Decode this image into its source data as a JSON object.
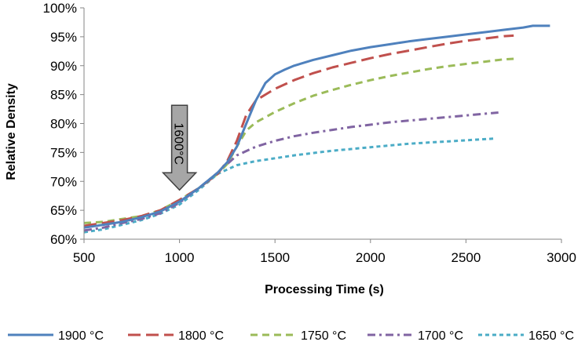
{
  "chart_data": {
    "type": "line",
    "title": "",
    "xlabel": "Processing Time (s)",
    "ylabel": "Relative Density",
    "xlim": [
      500,
      3000
    ],
    "ylim": [
      60,
      100
    ],
    "x_ticks": [
      500,
      1000,
      1500,
      2000,
      2500,
      3000
    ],
    "y_ticks": [
      60,
      65,
      70,
      75,
      80,
      85,
      90,
      95,
      100
    ],
    "y_tick_labels": [
      "60%",
      "65%",
      "70%",
      "75%",
      "80%",
      "85%",
      "90%",
      "95%",
      "100%"
    ],
    "grid": false,
    "legend_position": "bottom",
    "annotation": {
      "text": "1600°C",
      "x": 1000,
      "y": 68.5,
      "shape": "down-arrow"
    },
    "series": [
      {
        "name": "1900 °C",
        "color": "#4F81BD",
        "dash": "solid",
        "x": [
          500,
          600,
          700,
          800,
          900,
          1000,
          1100,
          1200,
          1250,
          1300,
          1350,
          1400,
          1450,
          1500,
          1550,
          1600,
          1700,
          1800,
          1900,
          2000,
          2100,
          2200,
          2300,
          2400,
          2500,
          2600,
          2700,
          2800,
          2850,
          2940
        ],
        "y": [
          62.0,
          62.5,
          63.0,
          63.8,
          64.8,
          66.5,
          68.8,
          71.5,
          73.3,
          76.0,
          80.0,
          84.0,
          87.0,
          88.5,
          89.3,
          90.0,
          91.0,
          91.8,
          92.6,
          93.2,
          93.7,
          94.2,
          94.6,
          95.0,
          95.4,
          95.8,
          96.2,
          96.6,
          96.9,
          96.9
        ]
      },
      {
        "name": "1800 °C",
        "color": "#C0504D",
        "dash": "long-dash",
        "x": [
          500,
          600,
          700,
          800,
          900,
          1000,
          1100,
          1200,
          1250,
          1300,
          1350,
          1400,
          1450,
          1500,
          1600,
          1700,
          1800,
          1900,
          2000,
          2100,
          2200,
          2300,
          2400,
          2500,
          2600,
          2700,
          2750
        ],
        "y": [
          62.3,
          62.8,
          63.3,
          64.0,
          65.0,
          66.8,
          68.8,
          71.3,
          73.5,
          77.0,
          81.5,
          84.0,
          85.0,
          86.0,
          87.5,
          88.7,
          89.7,
          90.5,
          91.3,
          92.0,
          92.6,
          93.2,
          93.8,
          94.3,
          94.7,
          95.1,
          95.2
        ]
      },
      {
        "name": "1750 °C",
        "color": "#9BBB59",
        "dash": "dash",
        "x": [
          500,
          600,
          700,
          800,
          900,
          1000,
          1100,
          1200,
          1250,
          1300,
          1350,
          1400,
          1500,
          1600,
          1700,
          1800,
          1900,
          2000,
          2100,
          2200,
          2300,
          2400,
          2500,
          2600,
          2700,
          2760
        ],
        "y": [
          62.8,
          63.0,
          63.5,
          64.0,
          65.0,
          66.8,
          68.8,
          71.3,
          73.0,
          76.0,
          78.8,
          80.2,
          82.0,
          83.5,
          84.8,
          85.8,
          86.7,
          87.5,
          88.2,
          88.8,
          89.4,
          89.9,
          90.3,
          90.7,
          91.1,
          91.2
        ]
      },
      {
        "name": "1700 °C",
        "color": "#8064A2",
        "dash": "dash-dot",
        "x": [
          500,
          600,
          700,
          800,
          900,
          1000,
          1100,
          1200,
          1300,
          1400,
          1500,
          1600,
          1700,
          1800,
          1900,
          2000,
          2100,
          2200,
          2300,
          2400,
          2500,
          2600,
          2670
        ],
        "y": [
          61.5,
          62.0,
          62.8,
          63.5,
          64.5,
          66.3,
          68.8,
          71.5,
          74.5,
          76.0,
          77.0,
          77.8,
          78.4,
          78.9,
          79.4,
          79.8,
          80.2,
          80.5,
          80.8,
          81.1,
          81.4,
          81.7,
          81.9
        ]
      },
      {
        "name": "1650 °C",
        "color": "#4BACC6",
        "dash": "short-dash",
        "x": [
          500,
          600,
          700,
          800,
          900,
          1000,
          1100,
          1200,
          1300,
          1400,
          1500,
          1600,
          1700,
          1800,
          1900,
          2000,
          2100,
          2200,
          2300,
          2400,
          2500,
          2600,
          2650
        ],
        "y": [
          61.2,
          61.7,
          62.5,
          63.3,
          64.4,
          66.0,
          68.5,
          71.3,
          72.8,
          73.5,
          74.0,
          74.5,
          74.9,
          75.3,
          75.6,
          75.9,
          76.2,
          76.5,
          76.7,
          76.9,
          77.1,
          77.3,
          77.4
        ]
      }
    ]
  }
}
